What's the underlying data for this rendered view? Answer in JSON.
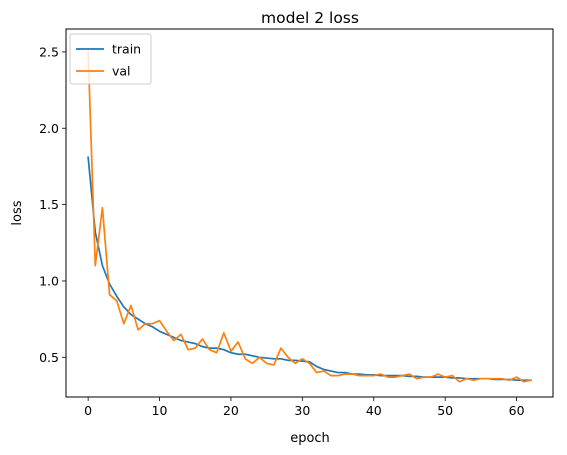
{
  "chart_data": {
    "type": "line",
    "title": "model 2 loss",
    "xlabel": "epoch",
    "ylabel": "loss",
    "xlim": [
      -3.1,
      65.1
    ],
    "ylim": [
      0.24,
      2.65
    ],
    "xticks": [
      0,
      10,
      20,
      30,
      40,
      50,
      60
    ],
    "yticks": [
      0.5,
      1.0,
      1.5,
      2.0,
      2.5
    ],
    "ytick_labels": [
      "0.5",
      "1.0",
      "1.5",
      "2.0",
      "2.5"
    ],
    "grid": false,
    "legend_placement": "top-left",
    "x": [
      0,
      1,
      2,
      3,
      4,
      5,
      6,
      7,
      8,
      9,
      10,
      11,
      12,
      13,
      14,
      15,
      16,
      17,
      18,
      19,
      20,
      21,
      22,
      23,
      24,
      25,
      26,
      27,
      28,
      29,
      30,
      31,
      32,
      33,
      34,
      35,
      36,
      37,
      38,
      39,
      40,
      41,
      42,
      43,
      44,
      45,
      46,
      47,
      48,
      49,
      50,
      51,
      52,
      53,
      54,
      55,
      56,
      57,
      58,
      59,
      60,
      61,
      62
    ],
    "series": [
      {
        "name": "train",
        "color": "#1f77b4",
        "values": [
          1.81,
          1.32,
          1.1,
          0.98,
          0.9,
          0.83,
          0.78,
          0.75,
          0.72,
          0.7,
          0.67,
          0.65,
          0.63,
          0.61,
          0.6,
          0.59,
          0.57,
          0.56,
          0.56,
          0.55,
          0.53,
          0.52,
          0.52,
          0.51,
          0.5,
          0.495,
          0.49,
          0.49,
          0.48,
          0.48,
          0.475,
          0.47,
          0.44,
          0.42,
          0.41,
          0.4,
          0.4,
          0.39,
          0.39,
          0.385,
          0.385,
          0.38,
          0.38,
          0.38,
          0.38,
          0.375,
          0.375,
          0.37,
          0.37,
          0.37,
          0.37,
          0.365,
          0.365,
          0.36,
          0.36,
          0.36,
          0.36,
          0.355,
          0.355,
          0.355,
          0.35,
          0.35,
          0.35
        ]
      },
      {
        "name": "val",
        "color": "#ff7f0e",
        "values": [
          2.5,
          1.1,
          1.48,
          0.91,
          0.87,
          0.72,
          0.84,
          0.68,
          0.72,
          0.72,
          0.74,
          0.67,
          0.61,
          0.65,
          0.55,
          0.56,
          0.62,
          0.55,
          0.53,
          0.66,
          0.54,
          0.6,
          0.49,
          0.46,
          0.5,
          0.46,
          0.45,
          0.56,
          0.5,
          0.46,
          0.49,
          0.46,
          0.4,
          0.41,
          0.38,
          0.38,
          0.39,
          0.39,
          0.38,
          0.38,
          0.38,
          0.39,
          0.37,
          0.37,
          0.38,
          0.39,
          0.36,
          0.37,
          0.37,
          0.39,
          0.37,
          0.38,
          0.34,
          0.36,
          0.35,
          0.36,
          0.36,
          0.36,
          0.36,
          0.35,
          0.37,
          0.34,
          0.35
        ]
      }
    ]
  }
}
